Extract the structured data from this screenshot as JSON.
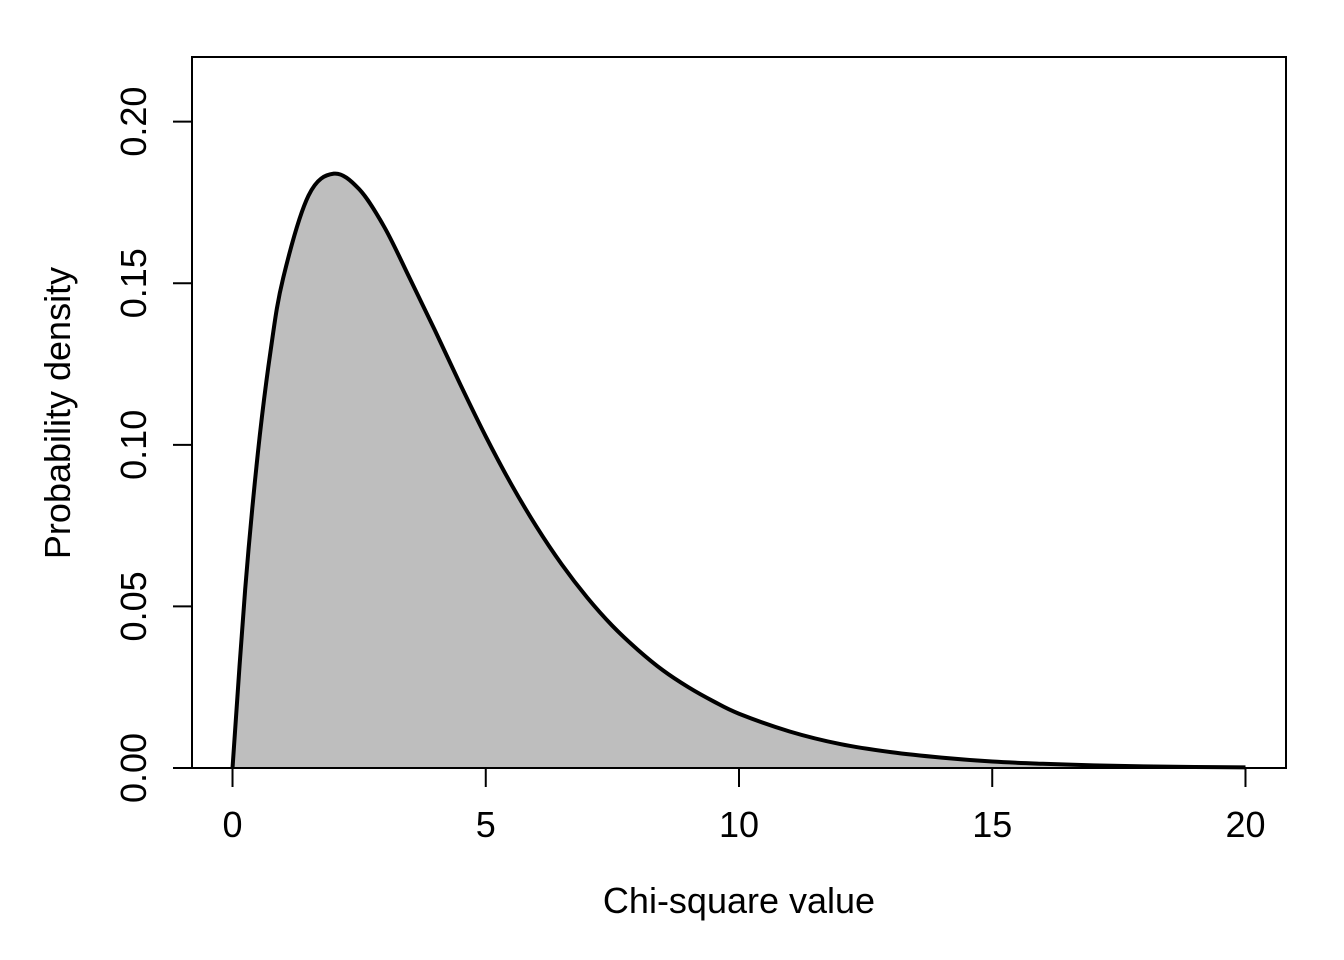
{
  "chart_data": {
    "type": "area",
    "title": "",
    "xlabel": "Chi-square value",
    "ylabel": "Probability density",
    "xlim": [
      -0.8,
      20.8
    ],
    "ylim": [
      0,
      0.22
    ],
    "x_ticks": [
      0,
      5,
      10,
      15,
      20
    ],
    "x_tick_labels": [
      "0",
      "5",
      "10",
      "15",
      "20"
    ],
    "y_ticks": [
      0,
      0.05,
      0.1,
      0.15,
      0.2
    ],
    "y_tick_labels": [
      "0.00",
      "0.05",
      "0.10",
      "0.15",
      "0.20"
    ],
    "grid": false,
    "legend": "none",
    "fill_color": "#bebebe",
    "line_color": "#000000",
    "series": [
      {
        "x": [
          0,
          0.25,
          0.5,
          0.75,
          1,
          1.5,
          2,
          2.5,
          3,
          3.5,
          4,
          4.5,
          5,
          5.5,
          6,
          6.5,
          7,
          7.5,
          8,
          8.5,
          9,
          9.5,
          10,
          11,
          12,
          13,
          14,
          15,
          16,
          17,
          18,
          19,
          20
        ],
        "values": [
          0,
          0.0553,
          0.0974,
          0.1289,
          0.1516,
          0.1771,
          0.1839,
          0.1791,
          0.1673,
          0.1515,
          0.1353,
          0.1186,
          0.1026,
          0.0879,
          0.0747,
          0.063,
          0.0528,
          0.044,
          0.0366,
          0.0302,
          0.025,
          0.0206,
          0.0168,
          0.0113,
          0.0074,
          0.0049,
          0.0032,
          0.002,
          0.0013,
          0.0008,
          0.0005,
          0.0003,
          0.0002
        ]
      }
    ]
  }
}
